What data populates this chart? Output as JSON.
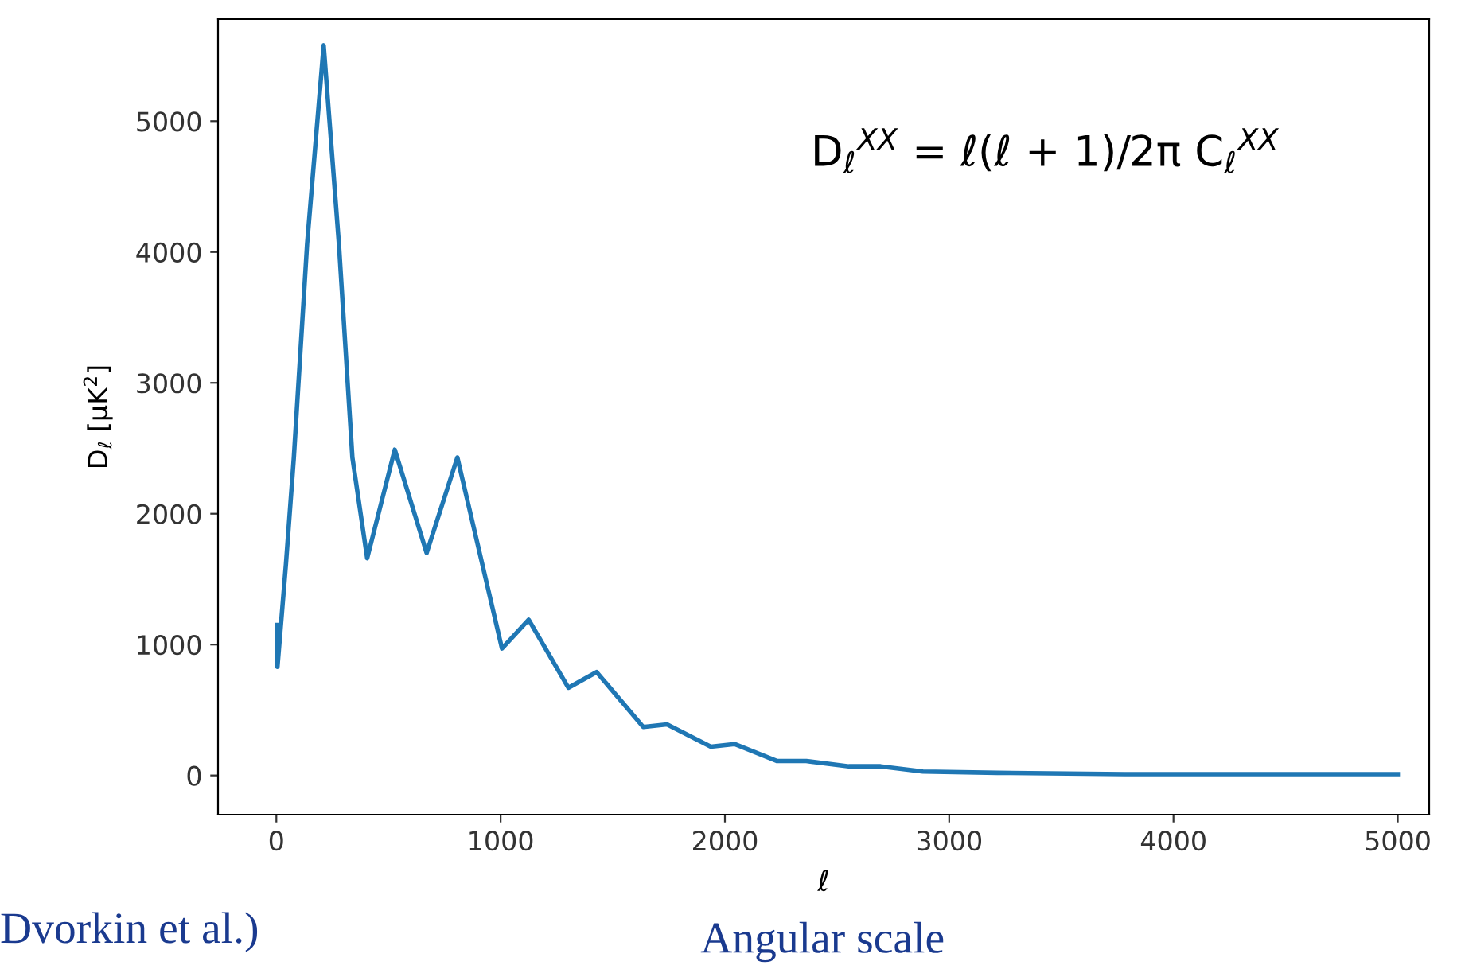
{
  "chart_data": {
    "type": "line",
    "xlabel": "ℓ",
    "ylabel": "D$_{ℓ}$ [μK$^{2}$]",
    "x": [
      2,
      5,
      43,
      78,
      137,
      211,
      279,
      339,
      405,
      528,
      670,
      807,
      1006,
      1125,
      1302,
      1428,
      1636,
      1742,
      1937,
      2043,
      2233,
      2363,
      2552,
      2694,
      2883,
      3215,
      3783,
      5000
    ],
    "series": [
      {
        "color": "#1f77b4",
        "values": [
          1150,
          830,
          1620,
          2430,
          4060,
          5580,
          4060,
          2430,
          1660,
          2490,
          1700,
          2430,
          970,
          1190,
          670,
          790,
          370,
          390,
          220,
          240,
          110,
          110,
          70,
          70,
          30,
          20,
          10,
          10
        ]
      }
    ],
    "xlim": [
      -260,
      5140
    ],
    "ylim": [
      -300,
      5780
    ],
    "xticks": [
      0,
      1000,
      2000,
      3000,
      4000,
      5000
    ],
    "yticks": [
      0,
      1000,
      2000,
      3000,
      4000,
      5000
    ],
    "grid": false,
    "legend": false,
    "marker": "none",
    "line_style": "solid",
    "annotations": [
      "D$_{ℓ}$$^{XX}$ = ℓ(ℓ + 1)/2π C$_{ℓ}$$^{XX}$",
      "Dvorkin et al.)",
      "Angular scale"
    ]
  }
}
